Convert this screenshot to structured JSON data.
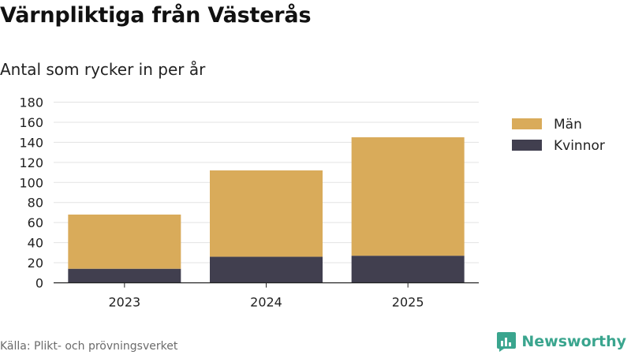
{
  "title": "Värnpliktiga från Västerås",
  "subtitle": "Antal som rycker in per år",
  "source": "Källa: Plikt- och prövningsverket",
  "brand": "Newsworthy",
  "colors": {
    "man": "#d9ab5a",
    "kvinnor": "#413f4f",
    "grid": "#e3e3e3",
    "axis": "#222222",
    "brand": "#3aa58e"
  },
  "chart_data": {
    "type": "bar",
    "stacked": true,
    "categories": [
      "2023",
      "2024",
      "2025"
    ],
    "series": [
      {
        "name": "Kvinnor",
        "values": [
          14,
          26,
          27
        ]
      },
      {
        "name": "Män",
        "values": [
          54,
          86,
          118
        ]
      }
    ],
    "legend": [
      "Män",
      "Kvinnor"
    ],
    "ylim": [
      0,
      180
    ],
    "yticks": [
      "0",
      "20",
      "40",
      "60",
      "80",
      "100",
      "120",
      "140",
      "160",
      "180"
    ],
    "xlabel": "",
    "ylabel": "",
    "grid": true,
    "legend_position": "right"
  }
}
